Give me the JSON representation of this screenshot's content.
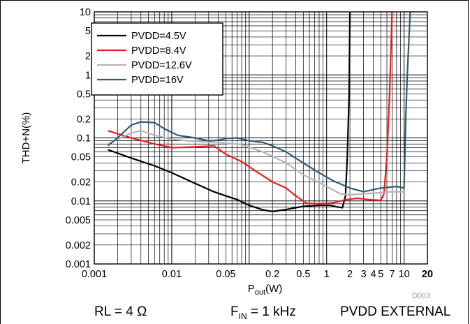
{
  "chart_data": {
    "type": "line",
    "xscale": "log",
    "yscale": "log",
    "xlabel_main": "P",
    "xlabel_sub": "out",
    "xlabel_unit": "(W)",
    "ylabel": "THD+N(%)",
    "xlim": [
      0.001,
      20
    ],
    "ylim": [
      0.001,
      10
    ],
    "grid": true,
    "legend_position": "top-left",
    "x_ticks": [
      {
        "v": 0.001,
        "label": "0.001"
      },
      {
        "v": 0.01,
        "label": "0.01"
      },
      {
        "v": 0.05,
        "label": "0.05"
      },
      {
        "v": 0.2,
        "label": "0.2"
      },
      {
        "v": 0.5,
        "label": "0.5"
      },
      {
        "v": 1,
        "label": "1"
      },
      {
        "v": 2,
        "label": "2"
      },
      {
        "v": 3,
        "label": "3"
      },
      {
        "v": 4,
        "label": "4"
      },
      {
        "v": 5,
        "label": "5"
      },
      {
        "v": 7,
        "label": "7"
      },
      {
        "v": 10,
        "label": "10"
      },
      {
        "v": 20,
        "label": "20",
        "bold": true
      }
    ],
    "y_ticks": [
      {
        "v": 0.001,
        "label": "0.001"
      },
      {
        "v": 0.002,
        "label": "0.002"
      },
      {
        "v": 0.005,
        "label": "0.005"
      },
      {
        "v": 0.01,
        "label": "0.01"
      },
      {
        "v": 0.02,
        "label": "0.02"
      },
      {
        "v": 0.05,
        "label": "0.05"
      },
      {
        "v": 0.1,
        "label": "0.1"
      },
      {
        "v": 0.2,
        "label": "0.2"
      },
      {
        "v": 0.5,
        "label": "0.5"
      },
      {
        "v": 1,
        "label": "1"
      },
      {
        "v": 2,
        "label": "2"
      },
      {
        "v": 5,
        "label": "5"
      },
      {
        "v": 10,
        "label": "10"
      }
    ],
    "series": [
      {
        "name": "PVDD=4.5V",
        "color": "#000000",
        "points": [
          [
            0.0015,
            0.065
          ],
          [
            0.003,
            0.048
          ],
          [
            0.006,
            0.036
          ],
          [
            0.01,
            0.028
          ],
          [
            0.02,
            0.019
          ],
          [
            0.035,
            0.014
          ],
          [
            0.05,
            0.012
          ],
          [
            0.07,
            0.0105
          ],
          [
            0.1,
            0.0085
          ],
          [
            0.15,
            0.0072
          ],
          [
            0.2,
            0.0068
          ],
          [
            0.3,
            0.0073
          ],
          [
            0.5,
            0.0082
          ],
          [
            0.8,
            0.0085
          ],
          [
            1.1,
            0.0085
          ],
          [
            1.4,
            0.008
          ],
          [
            1.6,
            0.0078
          ],
          [
            1.75,
            0.012
          ],
          [
            1.85,
            0.05
          ],
          [
            1.95,
            0.5
          ],
          [
            2.0,
            10
          ]
        ]
      },
      {
        "name": "PVDD=8.4V",
        "color": "#ee1c1c",
        "points": [
          [
            0.0015,
            0.13
          ],
          [
            0.003,
            0.1
          ],
          [
            0.006,
            0.08
          ],
          [
            0.01,
            0.07
          ],
          [
            0.02,
            0.072
          ],
          [
            0.035,
            0.075
          ],
          [
            0.05,
            0.055
          ],
          [
            0.08,
            0.042
          ],
          [
            0.12,
            0.03
          ],
          [
            0.2,
            0.02
          ],
          [
            0.3,
            0.016
          ],
          [
            0.4,
            0.012
          ],
          [
            0.55,
            0.0092
          ],
          [
            0.8,
            0.009
          ],
          [
            1.2,
            0.0093
          ],
          [
            1.8,
            0.0105
          ],
          [
            2.5,
            0.011
          ],
          [
            3.5,
            0.0105
          ],
          [
            5,
            0.0102
          ],
          [
            5.5,
            0.013
          ],
          [
            6,
            0.05
          ],
          [
            6.5,
            0.5
          ],
          [
            7,
            10
          ]
        ]
      },
      {
        "name": "PVDD=12.6V",
        "color": "#b5b5b5",
        "points": [
          [
            0.0015,
            0.08
          ],
          [
            0.003,
            0.12
          ],
          [
            0.004,
            0.13
          ],
          [
            0.006,
            0.11
          ],
          [
            0.01,
            0.095
          ],
          [
            0.02,
            0.088
          ],
          [
            0.04,
            0.085
          ],
          [
            0.08,
            0.078
          ],
          [
            0.15,
            0.06
          ],
          [
            0.3,
            0.04
          ],
          [
            0.5,
            0.026
          ],
          [
            1,
            0.017
          ],
          [
            1.5,
            0.013
          ],
          [
            2,
            0.0125
          ],
          [
            3,
            0.013
          ],
          [
            5,
            0.0135
          ],
          [
            7,
            0.014
          ],
          [
            10,
            0.014
          ]
        ]
      },
      {
        "name": "PVDD=16V",
        "color": "#325a70",
        "points": [
          [
            0.0015,
            0.075
          ],
          [
            0.002,
            0.1
          ],
          [
            0.003,
            0.16
          ],
          [
            0.004,
            0.18
          ],
          [
            0.006,
            0.175
          ],
          [
            0.008,
            0.14
          ],
          [
            0.012,
            0.11
          ],
          [
            0.02,
            0.1
          ],
          [
            0.03,
            0.09
          ],
          [
            0.04,
            0.092
          ],
          [
            0.05,
            0.098
          ],
          [
            0.07,
            0.1
          ],
          [
            0.1,
            0.09
          ],
          [
            0.15,
            0.085
          ],
          [
            0.2,
            0.075
          ],
          [
            0.3,
            0.06
          ],
          [
            0.5,
            0.04
          ],
          [
            0.8,
            0.028
          ],
          [
            1.2,
            0.021
          ],
          [
            2,
            0.016
          ],
          [
            3,
            0.014
          ],
          [
            5,
            0.016
          ],
          [
            8,
            0.017
          ],
          [
            10,
            0.016
          ],
          [
            10.5,
            0.2
          ],
          [
            11,
            1
          ],
          [
            12,
            10
          ]
        ]
      }
    ]
  },
  "footer": {
    "rl": "RL = 4 Ω",
    "fin_main": "F",
    "fin_sub": "IN",
    "fin_rest": " = 1 kHz",
    "supply": "PVDD EXTERNAL",
    "code": "D003"
  }
}
